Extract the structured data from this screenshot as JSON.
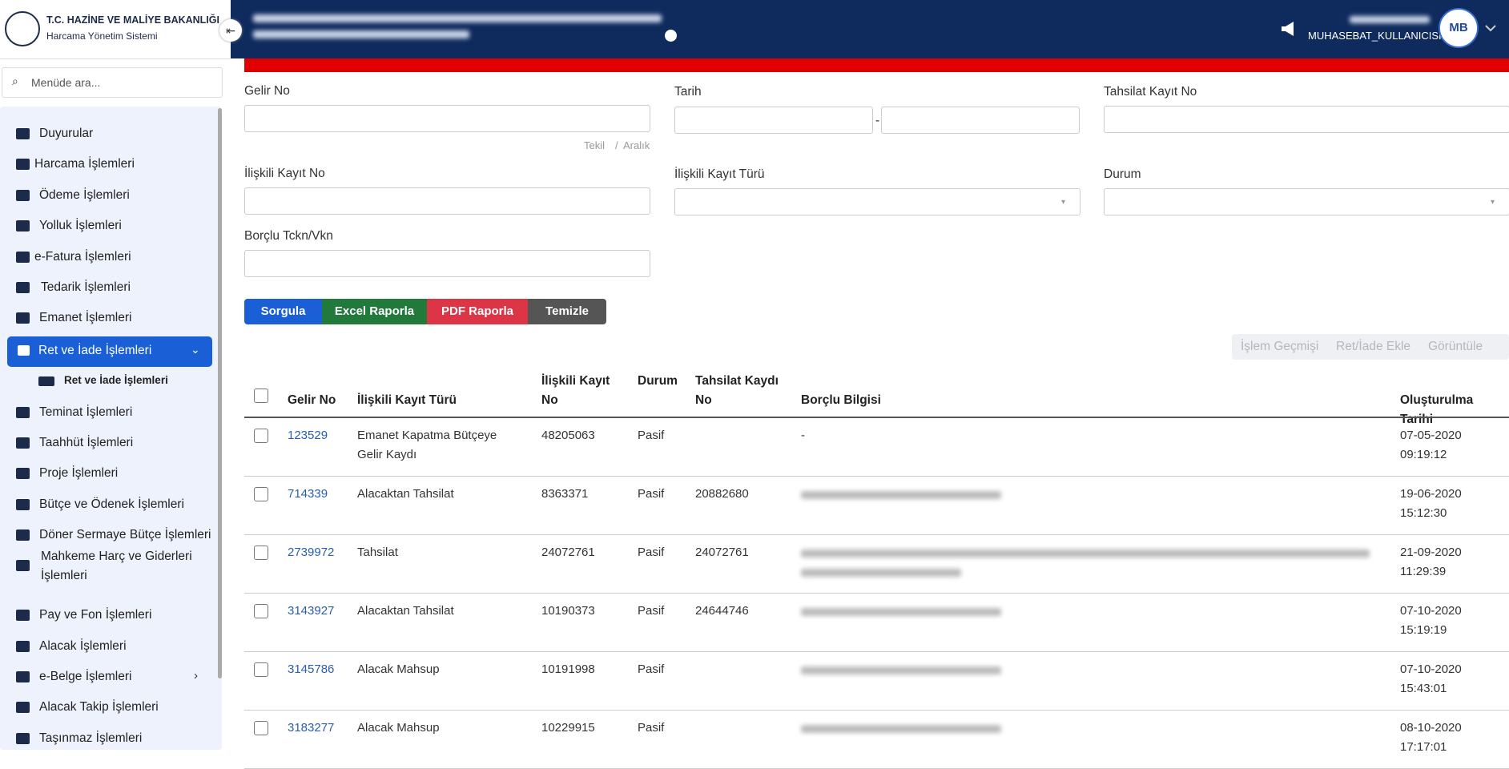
{
  "header": {
    "org": "T.C. HAZİNE VE MALİYE BAKANLIĞI",
    "system": "Harcama Yönetim Sistemi",
    "user": "MUHASEBAT_KULLANICISI",
    "logo": "MB"
  },
  "sidebar": {
    "search": "Menüde ara...",
    "menu": [
      "Duyurular",
      "Harcama İşlemleri",
      "Ödeme İşlemleri",
      "Yolluk İşlemleri",
      "e-Fatura İşlemleri",
      "Tedarik İşlemleri",
      "Emanet İşlemleri",
      "Ret ve İade İşlemleri",
      "Ret ve İade İşlemleri",
      "Teminat İşlemleri",
      "Taahhüt İşlemleri",
      "Proje İşlemleri",
      "Bütçe ve Ödenek İşlemleri",
      "Döner Sermaye Bütçe İşlemleri",
      "Mahkeme Harç ve Giderleri İşlemleri",
      "Pay ve Fon İşlemleri",
      "Alacak İşlemleri",
      "e-Belge İşlemleri",
      "Alacak Takip İşlemleri",
      "Taşınmaz İşlemleri"
    ]
  },
  "form": {
    "fields": [
      "Gelir No",
      "Tarih",
      "Tahsilat Kayıt No",
      "İlişkili Kayıt No",
      "İlişkili Kayıt Türü",
      "Durum",
      "Borçlu Tckn/Vkn"
    ],
    "hint": [
      "Tekil",
      "/",
      "Aralık"
    ],
    "range_sep": "-"
  },
  "buttons": [
    "Sorgula",
    "Excel Raporla",
    "PDF Raporla",
    "Temizle"
  ],
  "actions": [
    "İşlem Geçmişi",
    "Ret/İade Ekle",
    "Görüntüle"
  ],
  "table": {
    "columns": [
      "Gelir No",
      "İlişkili Kayıt Türü",
      "İlişkili Kayıt No",
      "Durum",
      "Tahsilat Kaydı No",
      "Borçlu Bilgisi",
      "Oluşturulma Tarihi"
    ],
    "rows": [
      [
        "123529",
        "Emanet Kapatma Bütçeye Gelir Kaydı",
        "48205063",
        "Pasif",
        null,
        "-",
        "07-05-2020 09:19:12"
      ],
      [
        "714339",
        "Alacaktan Tahsilat",
        "8363371",
        "Pasif",
        "20882680",
        null,
        "19-06-2020 15:12:30"
      ],
      [
        "2739972",
        "Tahsilat",
        "24072761",
        "Pasif",
        "24072761",
        null,
        "21-09-2020 11:29:39"
      ],
      [
        "3143927",
        "Alacaktan Tahsilat",
        "10190373",
        "Pasif",
        "24644746",
        null,
        "07-10-2020 15:19:19"
      ],
      [
        "3145786",
        "Alacak Mahsup",
        "10191998",
        "Pasif",
        null,
        null,
        "07-10-2020 15:43:01"
      ],
      [
        "3183277",
        "Alacak Mahsup",
        "10229915",
        "Pasif",
        null,
        null,
        "08-10-2020 17:17:01"
      ]
    ]
  }
}
